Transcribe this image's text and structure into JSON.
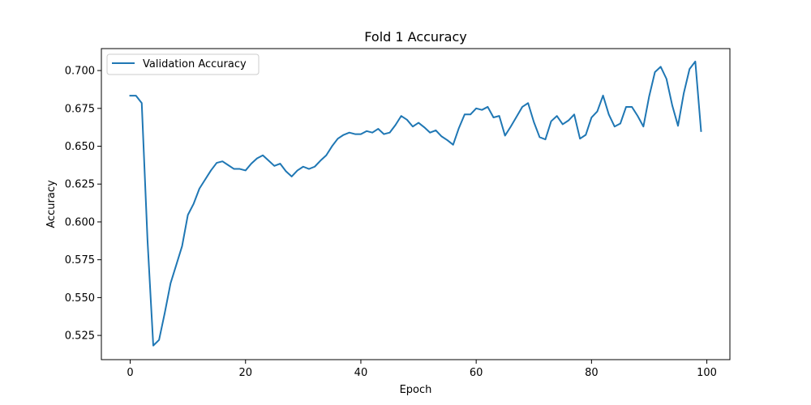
{
  "chart_data": {
    "type": "line",
    "title": "Fold 1 Accuracy",
    "xlabel": "Epoch",
    "ylabel": "Accuracy",
    "xlim": [
      -5,
      104
    ],
    "ylim": [
      0.509,
      0.7145
    ],
    "xticks": [
      0,
      20,
      40,
      60,
      80,
      100
    ],
    "yticks": [
      0.525,
      0.55,
      0.575,
      0.6,
      0.625,
      0.65,
      0.675,
      0.7
    ],
    "ytick_labels": [
      "0.525",
      "0.550",
      "0.575",
      "0.600",
      "0.625",
      "0.650",
      "0.675",
      "0.700"
    ],
    "xtick_labels": [
      "0",
      "20",
      "40",
      "60",
      "80",
      "100"
    ],
    "grid": false,
    "legend_position": "upper-left",
    "series": [
      {
        "name": "Validation Accuracy",
        "color": "#1f77b4",
        "x": [
          0,
          1,
          2,
          3,
          4,
          5,
          6,
          7,
          8,
          9,
          10,
          11,
          12,
          13,
          14,
          15,
          16,
          17,
          18,
          19,
          20,
          21,
          22,
          23,
          24,
          25,
          26,
          27,
          28,
          29,
          30,
          31,
          32,
          33,
          34,
          35,
          36,
          37,
          38,
          39,
          40,
          41,
          42,
          43,
          44,
          45,
          46,
          47,
          48,
          49,
          50,
          51,
          52,
          53,
          54,
          55,
          56,
          57,
          58,
          59,
          60,
          61,
          62,
          63,
          64,
          65,
          66,
          67,
          68,
          69,
          70,
          71,
          72,
          73,
          74,
          75,
          76,
          77,
          78,
          79,
          80,
          81,
          82,
          83,
          84,
          85,
          86,
          87,
          88,
          89,
          90,
          91,
          92,
          93,
          94,
          95,
          96,
          97,
          98,
          99
        ],
        "values": [
          0.6834,
          0.6834,
          0.6785,
          0.588,
          0.5183,
          0.522,
          0.54,
          0.5595,
          0.5717,
          0.584,
          0.6046,
          0.612,
          0.622,
          0.628,
          0.634,
          0.639,
          0.64,
          0.6375,
          0.635,
          0.635,
          0.634,
          0.6385,
          0.642,
          0.644,
          0.6405,
          0.637,
          0.6385,
          0.6335,
          0.63,
          0.634,
          0.6365,
          0.635,
          0.6365,
          0.6405,
          0.644,
          0.65,
          0.655,
          0.6575,
          0.659,
          0.658,
          0.658,
          0.66,
          0.659,
          0.6615,
          0.658,
          0.659,
          0.664,
          0.67,
          0.6675,
          0.663,
          0.6655,
          0.6625,
          0.659,
          0.6605,
          0.6565,
          0.654,
          0.651,
          0.662,
          0.671,
          0.671,
          0.675,
          0.674,
          0.676,
          0.669,
          0.67,
          0.657,
          0.663,
          0.6695,
          0.676,
          0.6785,
          0.666,
          0.656,
          0.6545,
          0.6665,
          0.67,
          0.6645,
          0.667,
          0.671,
          0.655,
          0.6575,
          0.669,
          0.673,
          0.6835,
          0.671,
          0.663,
          0.665,
          0.676,
          0.676,
          0.67,
          0.663,
          0.683,
          0.699,
          0.7025,
          0.6945,
          0.677,
          0.6635,
          0.685,
          0.701,
          0.706,
          0.66
        ]
      }
    ]
  }
}
